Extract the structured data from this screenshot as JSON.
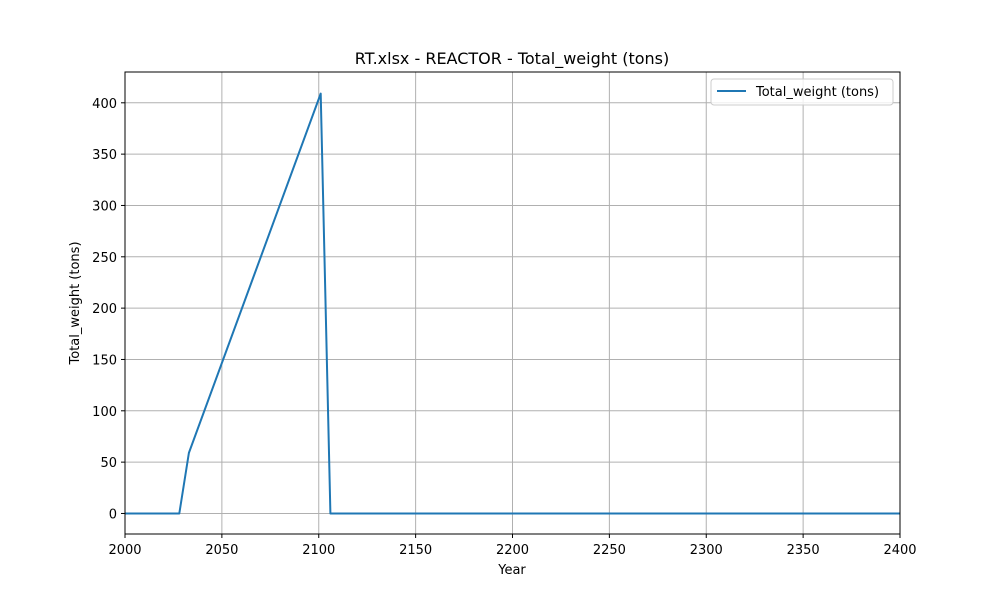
{
  "chart_data": {
    "type": "line",
    "title": "RT.xlsx - REACTOR - Total_weight (tons)",
    "xlabel": "Year",
    "ylabel": "Total_weight (tons)",
    "xlim": [
      2000,
      2400
    ],
    "ylim": [
      -20,
      430
    ],
    "xticks": [
      2000,
      2050,
      2100,
      2150,
      2200,
      2250,
      2300,
      2350,
      2400
    ],
    "yticks": [
      0,
      50,
      100,
      150,
      200,
      250,
      300,
      350,
      400
    ],
    "grid": true,
    "legend_position": "top-right",
    "series": [
      {
        "name": "Total_weight (tons)",
        "color": "#1f77b4",
        "x": [
          2000,
          2028,
          2033,
          2101,
          2106,
          2400
        ],
        "y": [
          0,
          0,
          59,
          409,
          0,
          0
        ]
      }
    ]
  }
}
